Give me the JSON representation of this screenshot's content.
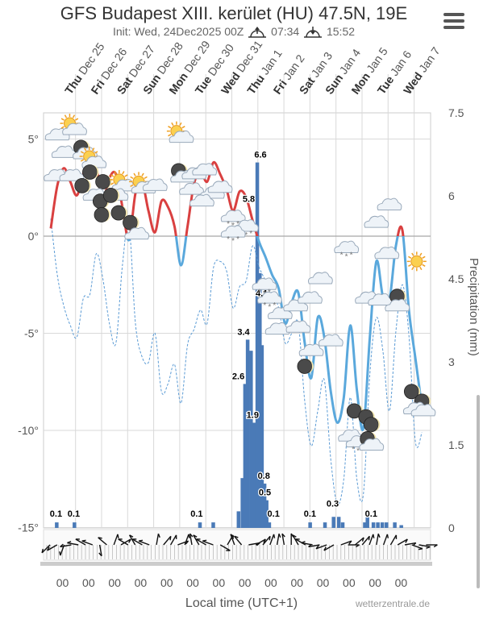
{
  "header": {
    "title": "GFS Budapest XIII. kerület (HU) 47.5N, 19E",
    "init_label": "Init: Wed, 24Dec2025 00Z",
    "sunrise": "07:34",
    "sunset": "15:52"
  },
  "footer": {
    "xlabel": "Local time (UTC+1)",
    "credit": "wetterzentrale.de",
    "hour_label": "00"
  },
  "colors": {
    "temp_warm": "#d94040",
    "temp_cold": "#5aa8dc",
    "dewpoint": "#5b9bd5",
    "precip_bar": "#4a7ab7",
    "grid": "#d9d9d9",
    "zero_line": "#a8a8a8"
  },
  "chart_data": {
    "type": "line",
    "x_ticks": [
      {
        "dow": "Thu",
        "date": "Dec 25"
      },
      {
        "dow": "Fri",
        "date": "Dec 26"
      },
      {
        "dow": "Sat",
        "date": "Dec 27"
      },
      {
        "dow": "Sun",
        "date": "Dec 28"
      },
      {
        "dow": "Mon",
        "date": "Dec 29"
      },
      {
        "dow": "Tue",
        "date": "Dec 30"
      },
      {
        "dow": "Wed",
        "date": "Dec 31"
      },
      {
        "dow": "Thu",
        "date": "Jan 1"
      },
      {
        "dow": "Fri",
        "date": "Jan 2"
      },
      {
        "dow": "Sat",
        "date": "Jan 3"
      },
      {
        "dow": "Sun",
        "date": "Jan 4"
      },
      {
        "dow": "Mon",
        "date": "Jan 5"
      },
      {
        "dow": "Tue",
        "date": "Jan 6"
      },
      {
        "dow": "Wed",
        "date": "Jan 7"
      }
    ],
    "x_range_days": [
      0,
      14.3
    ],
    "y_left": {
      "ticks": [
        "5°",
        "0°",
        "-5°",
        "-10°",
        "-15°"
      ],
      "values": [
        5,
        0,
        -5,
        -10,
        -15
      ],
      "range": [
        -15,
        6
      ]
    },
    "y_right": {
      "label": "Precipitation (mm)",
      "ticks": [
        "7.5",
        "6",
        "4.5",
        "3",
        "1.5",
        "0"
      ],
      "values": [
        7.5,
        6,
        4.5,
        3,
        1.5,
        0
      ]
    },
    "series": [
      {
        "key": "temperature",
        "points": [
          [
            0.0,
            0.4
          ],
          [
            0.25,
            2.6
          ],
          [
            0.5,
            3.5
          ],
          [
            0.75,
            2.8
          ],
          [
            1.0,
            2.1
          ],
          [
            1.25,
            3.2
          ],
          [
            1.5,
            4.3
          ],
          [
            1.75,
            3.5
          ],
          [
            2.0,
            1.9
          ],
          [
            2.25,
            3.0
          ],
          [
            2.5,
            3.2
          ],
          [
            2.75,
            1.5
          ],
          [
            3.0,
            -0.2
          ],
          [
            3.25,
            2.2
          ],
          [
            3.5,
            2.8
          ],
          [
            3.75,
            1.3
          ],
          [
            4.0,
            0.2
          ],
          [
            4.25,
            1.8
          ],
          [
            4.5,
            1.5
          ],
          [
            4.75,
            0.5
          ],
          [
            5.0,
            -1.5
          ],
          [
            5.25,
            0.5
          ],
          [
            5.5,
            2.7
          ],
          [
            5.75,
            3.3
          ],
          [
            6.0,
            2.8
          ],
          [
            6.25,
            3.8
          ],
          [
            6.5,
            3.2
          ],
          [
            6.75,
            2.4
          ],
          [
            7.0,
            1.3
          ],
          [
            7.25,
            2.3
          ],
          [
            7.5,
            2.0
          ],
          [
            7.75,
            0.8
          ],
          [
            8.0,
            -0.3
          ],
          [
            8.25,
            -1.1
          ],
          [
            8.5,
            -2.0
          ],
          [
            8.75,
            -2.7
          ],
          [
            9.0,
            -4.5
          ],
          [
            9.25,
            -3.4
          ],
          [
            9.5,
            -2.9
          ],
          [
            9.75,
            -5.5
          ],
          [
            10.0,
            -7.3
          ],
          [
            10.25,
            -4.2
          ],
          [
            10.5,
            -5.2
          ],
          [
            10.75,
            -8.0
          ],
          [
            11.0,
            -9.6
          ],
          [
            11.25,
            -8.3
          ],
          [
            11.5,
            -4.6
          ],
          [
            11.75,
            -7.9
          ],
          [
            12.0,
            -9.9
          ],
          [
            12.25,
            -5.2
          ],
          [
            12.5,
            -1.3
          ],
          [
            12.75,
            -3.1
          ],
          [
            13.0,
            -3.3
          ],
          [
            13.25,
            -0.5
          ],
          [
            13.5,
            0.3
          ],
          [
            13.75,
            -3.8
          ],
          [
            14.0,
            -6.3
          ],
          [
            14.25,
            -8.8
          ]
        ]
      },
      {
        "key": "dewpoint",
        "points": [
          [
            0.0,
            0.9
          ],
          [
            0.25,
            -2.0
          ],
          [
            0.5,
            -3.6
          ],
          [
            0.75,
            -4.6
          ],
          [
            1.0,
            -5.2
          ],
          [
            1.25,
            -3.2
          ],
          [
            1.5,
            -3.0
          ],
          [
            1.75,
            -0.9
          ],
          [
            2.0,
            -2.2
          ],
          [
            2.25,
            -4.5
          ],
          [
            2.5,
            -5.5
          ],
          [
            2.75,
            -1.5
          ],
          [
            3.0,
            0.6
          ],
          [
            3.25,
            -4.5
          ],
          [
            3.5,
            -6.2
          ],
          [
            3.75,
            -6.5
          ],
          [
            4.0,
            -5.0
          ],
          [
            4.25,
            -8.0
          ],
          [
            4.5,
            -7.6
          ],
          [
            4.75,
            -6.6
          ],
          [
            5.0,
            -8.6
          ],
          [
            5.25,
            -5.6
          ],
          [
            5.5,
            -4.8
          ],
          [
            5.75,
            -3.8
          ],
          [
            6.0,
            -4.5
          ],
          [
            6.25,
            -1.6
          ],
          [
            6.5,
            -1.3
          ],
          [
            6.75,
            -1.8
          ],
          [
            7.0,
            -3.7
          ],
          [
            7.25,
            -2.6
          ],
          [
            7.5,
            -2.3
          ],
          [
            7.75,
            -0.5
          ],
          [
            8.0,
            -1.6
          ],
          [
            8.25,
            -2.3
          ],
          [
            8.5,
            -3.0
          ],
          [
            8.75,
            -3.7
          ],
          [
            9.0,
            -5.5
          ],
          [
            9.25,
            -5.0
          ],
          [
            9.5,
            -4.5
          ],
          [
            9.75,
            -8.5
          ],
          [
            10.0,
            -10.8
          ],
          [
            10.25,
            -9.0
          ],
          [
            10.5,
            -7.4
          ],
          [
            10.75,
            -11.5
          ],
          [
            11.0,
            -13.8
          ],
          [
            11.25,
            -12.5
          ],
          [
            11.5,
            -8.3
          ],
          [
            11.75,
            -12.5
          ],
          [
            12.0,
            -13.3
          ],
          [
            12.25,
            -7.1
          ],
          [
            12.5,
            -4.2
          ],
          [
            12.75,
            -5.9
          ],
          [
            13.0,
            -9.0
          ],
          [
            13.25,
            -4.9
          ],
          [
            13.5,
            -2.5
          ],
          [
            13.75,
            -5.1
          ],
          [
            14.0,
            -10.6
          ],
          [
            14.25,
            -10.1
          ]
        ]
      },
      {
        "key": "precipitation",
        "bars": [
          [
            0.22,
            0.1
          ],
          [
            0.9,
            0.1
          ],
          [
            5.72,
            0.1
          ],
          [
            6.23,
            0.1
          ],
          [
            7.2,
            0.3
          ],
          [
            7.35,
            0.9
          ],
          [
            7.45,
            2.6
          ],
          [
            7.55,
            3.4
          ],
          [
            7.68,
            3.2
          ],
          [
            7.8,
            1.9
          ],
          [
            7.92,
            6.6
          ],
          [
            8.02,
            4.6
          ],
          [
            8.1,
            3.3
          ],
          [
            8.2,
            0.8
          ],
          [
            8.28,
            0.5
          ],
          [
            8.38,
            0.1
          ],
          [
            9.95,
            0.1
          ],
          [
            10.52,
            0.1
          ],
          [
            10.85,
            0.2
          ],
          [
            11.05,
            0.2
          ],
          [
            11.2,
            0.1
          ],
          [
            12.05,
            0.1
          ],
          [
            12.15,
            0.2
          ],
          [
            12.38,
            0.1
          ],
          [
            12.55,
            0.1
          ],
          [
            12.72,
            0.1
          ],
          [
            12.88,
            0.1
          ],
          [
            13.2,
            0.1
          ],
          [
            13.45,
            0.05
          ]
        ],
        "labels": [
          [
            0.2,
            "0.1"
          ],
          [
            0.88,
            "0.1"
          ],
          [
            5.6,
            "0.1"
          ],
          [
            8.05,
            "6.6"
          ],
          [
            7.6,
            "5.8"
          ],
          [
            8.1,
            "4.1"
          ],
          [
            7.4,
            "3.4"
          ],
          [
            7.2,
            "2.6"
          ],
          [
            7.75,
            "1.9"
          ],
          [
            8.18,
            "0.8"
          ],
          [
            8.22,
            "0.5"
          ],
          [
            8.55,
            "0.1"
          ],
          [
            9.95,
            "0.1"
          ],
          [
            10.82,
            "0.3"
          ],
          [
            12.3,
            "0.1"
          ]
        ]
      }
    ],
    "icons": [
      {
        "d": 0.25,
        "t": 5.2,
        "k": "cloud"
      },
      {
        "d": 0.85,
        "t": 5.6,
        "k": "sun-cloud"
      },
      {
        "d": 0.5,
        "t": 4.3,
        "k": "cloud"
      },
      {
        "d": 1.25,
        "t": 4.4,
        "k": "moon-cloud"
      },
      {
        "d": 1.6,
        "t": 3.9,
        "k": "sun-cloud"
      },
      {
        "d": 0.2,
        "t": 3.1,
        "k": "cloud"
      },
      {
        "d": 0.8,
        "t": 3.1,
        "k": "cloud"
      },
      {
        "d": 1.5,
        "t": 3.3,
        "k": "moon"
      },
      {
        "d": 1.2,
        "t": 2.6,
        "k": "moon"
      },
      {
        "d": 2.0,
        "t": 2.8,
        "k": "moon"
      },
      {
        "d": 2.75,
        "t": 2.7,
        "k": "sun-cloud"
      },
      {
        "d": 1.7,
        "t": 2.1,
        "k": "cloud"
      },
      {
        "d": 2.5,
        "t": 2.1,
        "k": "cloud"
      },
      {
        "d": 1.9,
        "t": 1.8,
        "k": "moon"
      },
      {
        "d": 2.3,
        "t": 2.1,
        "k": "moon"
      },
      {
        "d": 3.5,
        "t": 2.6,
        "k": "sun-cloud"
      },
      {
        "d": 4.0,
        "t": 2.6,
        "k": "cloud"
      },
      {
        "d": 1.95,
        "t": 1.1,
        "k": "moon"
      },
      {
        "d": 2.6,
        "t": 1.2,
        "k": "moon"
      },
      {
        "d": 3.05,
        "t": 0.7,
        "k": "moon"
      },
      {
        "d": 3.3,
        "t": 0.1,
        "k": "cloud"
      },
      {
        "d": 4.95,
        "t": 5.2,
        "k": "sun-cloud"
      },
      {
        "d": 5.0,
        "t": 3.2,
        "k": "moon-cloud"
      },
      {
        "d": 5.5,
        "t": 3.2,
        "k": "cloud"
      },
      {
        "d": 5.9,
        "t": 3.4,
        "k": "cloud"
      },
      {
        "d": 5.4,
        "t": 2.4,
        "k": "cloud"
      },
      {
        "d": 6.2,
        "t": 2.2,
        "k": "cloud"
      },
      {
        "d": 6.5,
        "t": 2.5,
        "k": "cloud"
      },
      {
        "d": 5.8,
        "t": 1.8,
        "k": "cloud"
      },
      {
        "d": 7.0,
        "t": 1.0,
        "k": "cloud-snow"
      },
      {
        "d": 7.5,
        "t": 0.5,
        "k": "cloud-snow"
      },
      {
        "d": 7.0,
        "t": 0.2,
        "k": "cloud-snow"
      },
      {
        "d": 8.2,
        "t": -2.5,
        "k": "cloud-snow"
      },
      {
        "d": 8.4,
        "t": -3.2,
        "k": "cloud-snow"
      },
      {
        "d": 8.8,
        "t": -4.0,
        "k": "cloud"
      },
      {
        "d": 9.4,
        "t": -3.6,
        "k": "cloud"
      },
      {
        "d": 9.95,
        "t": -3.2,
        "k": "cloud"
      },
      {
        "d": 10.35,
        "t": -2.2,
        "k": "cloud"
      },
      {
        "d": 8.7,
        "t": -4.8,
        "k": "cloud"
      },
      {
        "d": 9.5,
        "t": -4.7,
        "k": "cloud"
      },
      {
        "d": 11.35,
        "t": -0.6,
        "k": "cloud-snow"
      },
      {
        "d": 10.0,
        "t": -5.9,
        "k": "cloud"
      },
      {
        "d": 10.75,
        "t": -5.4,
        "k": "cloud"
      },
      {
        "d": 9.75,
        "t": -6.7,
        "k": "moon"
      },
      {
        "d": 11.65,
        "t": -9.0,
        "k": "moon"
      },
      {
        "d": 12.1,
        "t": -9.3,
        "k": "moon"
      },
      {
        "d": 12.3,
        "t": -9.7,
        "k": "moon"
      },
      {
        "d": 11.5,
        "t": -10.3,
        "k": "cloud"
      },
      {
        "d": 11.8,
        "t": -10.6,
        "k": "cloud-snow"
      },
      {
        "d": 12.25,
        "t": -10.6,
        "k": "moon-cloud"
      },
      {
        "d": 12.15,
        "t": -3.2,
        "k": "cloud"
      },
      {
        "d": 12.65,
        "t": -3.3,
        "k": "cloud"
      },
      {
        "d": 13.3,
        "t": -3.1,
        "k": "moon"
      },
      {
        "d": 13.3,
        "t": -3.6,
        "k": "cloud"
      },
      {
        "d": 12.9,
        "t": -0.9,
        "k": "cloud"
      },
      {
        "d": 12.5,
        "t": 0.7,
        "k": "cloud"
      },
      {
        "d": 13.0,
        "t": 1.6,
        "k": "cloud"
      },
      {
        "d": 14.05,
        "t": -1.3,
        "k": "sun"
      },
      {
        "d": 13.85,
        "t": -8.0,
        "k": "moon"
      },
      {
        "d": 14.25,
        "t": -8.5,
        "k": "moon"
      },
      {
        "d": 14.0,
        "t": -8.9,
        "k": "cloud"
      },
      {
        "d": 14.3,
        "t": -9.0,
        "k": "cloud"
      }
    ],
    "wind_dirs": [
      225,
      240,
      200,
      260,
      280,
      300,
      290,
      170,
      310,
      20,
      60,
      300,
      330,
      300,
      290,
      10,
      40,
      30,
      70,
      20,
      350,
      330,
      300,
      290,
      120,
      30,
      340,
      320,
      80,
      60,
      40,
      20,
      10,
      350,
      0,
      330,
      300,
      280,
      260,
      250,
      240,
      70,
      90,
      50,
      40,
      20,
      10,
      20,
      30,
      60,
      80,
      110,
      100,
      90
    ]
  }
}
